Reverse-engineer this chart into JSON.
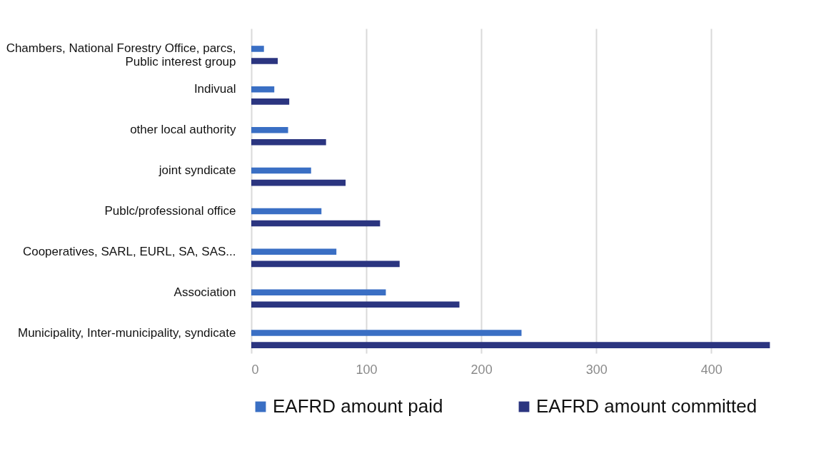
{
  "chart_data": {
    "type": "bar",
    "orientation": "horizontal",
    "categories": [
      "Chambers, National Forestry Office, parcs, Public interest group",
      "Indivual",
      "other local authority",
      "joint syndicate",
      "Publc/professional office",
      "Cooperatives, SARL, EURL, SA, SAS...",
      "Association",
      "Municipality, Inter-municipality, syndicate"
    ],
    "series": [
      {
        "name": "EAFRD amount paid",
        "color": "#3a6fc4",
        "values": [
          11,
          20,
          32,
          52,
          61,
          74,
          117,
          235
        ]
      },
      {
        "name": "EAFRD amount committed",
        "color": "#2b3580",
        "values": [
          23,
          33,
          65,
          82,
          112,
          129,
          181,
          451
        ]
      }
    ],
    "xlim": [
      0,
      452
    ],
    "xticks": [
      0,
      100,
      200,
      300,
      400
    ],
    "grid": "x",
    "legend": "bottom"
  }
}
